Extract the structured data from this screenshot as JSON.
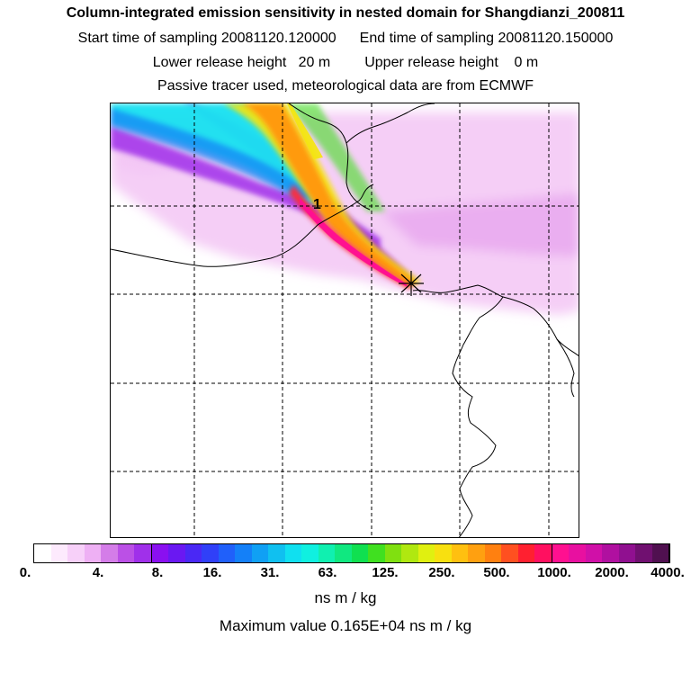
{
  "header": {
    "title": "Column-integrated emission sensitivity in nested domain for Shangdianzi_200811",
    "start_label": "Start time of sampling 20081120.120000",
    "end_label": "End time of sampling 20081120.150000",
    "lower_label": "Lower release height   20 m",
    "upper_label": "Upper release height    0 m",
    "note": "Passive tracer used, meteorological data are from ECMWF"
  },
  "map": {
    "marker_label": "1",
    "grid_lines": "dashed",
    "colors": {
      "coastline": "#000000",
      "light_pink": "#f3c6f5",
      "pink": "#e7a6ef",
      "purple": "#9a18e6",
      "cyan": "#14e1f0",
      "blue": "#1c8cf5",
      "yellow": "#f4e60a",
      "orange": "#ff9a10",
      "red": "#ff2a3c",
      "magenta": "#ff1090"
    }
  },
  "colorbar": {
    "ticks": [
      "0.",
      "4.",
      "8.",
      "16.",
      "31.",
      "63.",
      "125.",
      "250.",
      "500.",
      "1000.",
      "2000.",
      "4000."
    ],
    "colors": [
      "#ffffff",
      "#fdeafd",
      "#f7d0f9",
      "#eeb0f4",
      "#d47de8",
      "#bb50e6",
      "#a030ea",
      "#8a10f0",
      "#6a18f2",
      "#4a28f5",
      "#3040f8",
      "#2060fa",
      "#1480f8",
      "#10a0f4",
      "#10c0f0",
      "#10e0f0",
      "#10f0e0",
      "#10f0b0",
      "#10e880",
      "#10e050",
      "#40e020",
      "#80e010",
      "#b0e810",
      "#e0f010",
      "#f8e010",
      "#ffc010",
      "#ffa010",
      "#ff8010",
      "#ff5020",
      "#ff2030",
      "#ff1060",
      "#ff1090",
      "#e810a0",
      "#d010a8",
      "#b010a0",
      "#901090",
      "#701070",
      "#501050"
    ],
    "unit": "ns m / kg",
    "max_value_text": "Maximum value  0.165E+04 ns m / kg"
  }
}
